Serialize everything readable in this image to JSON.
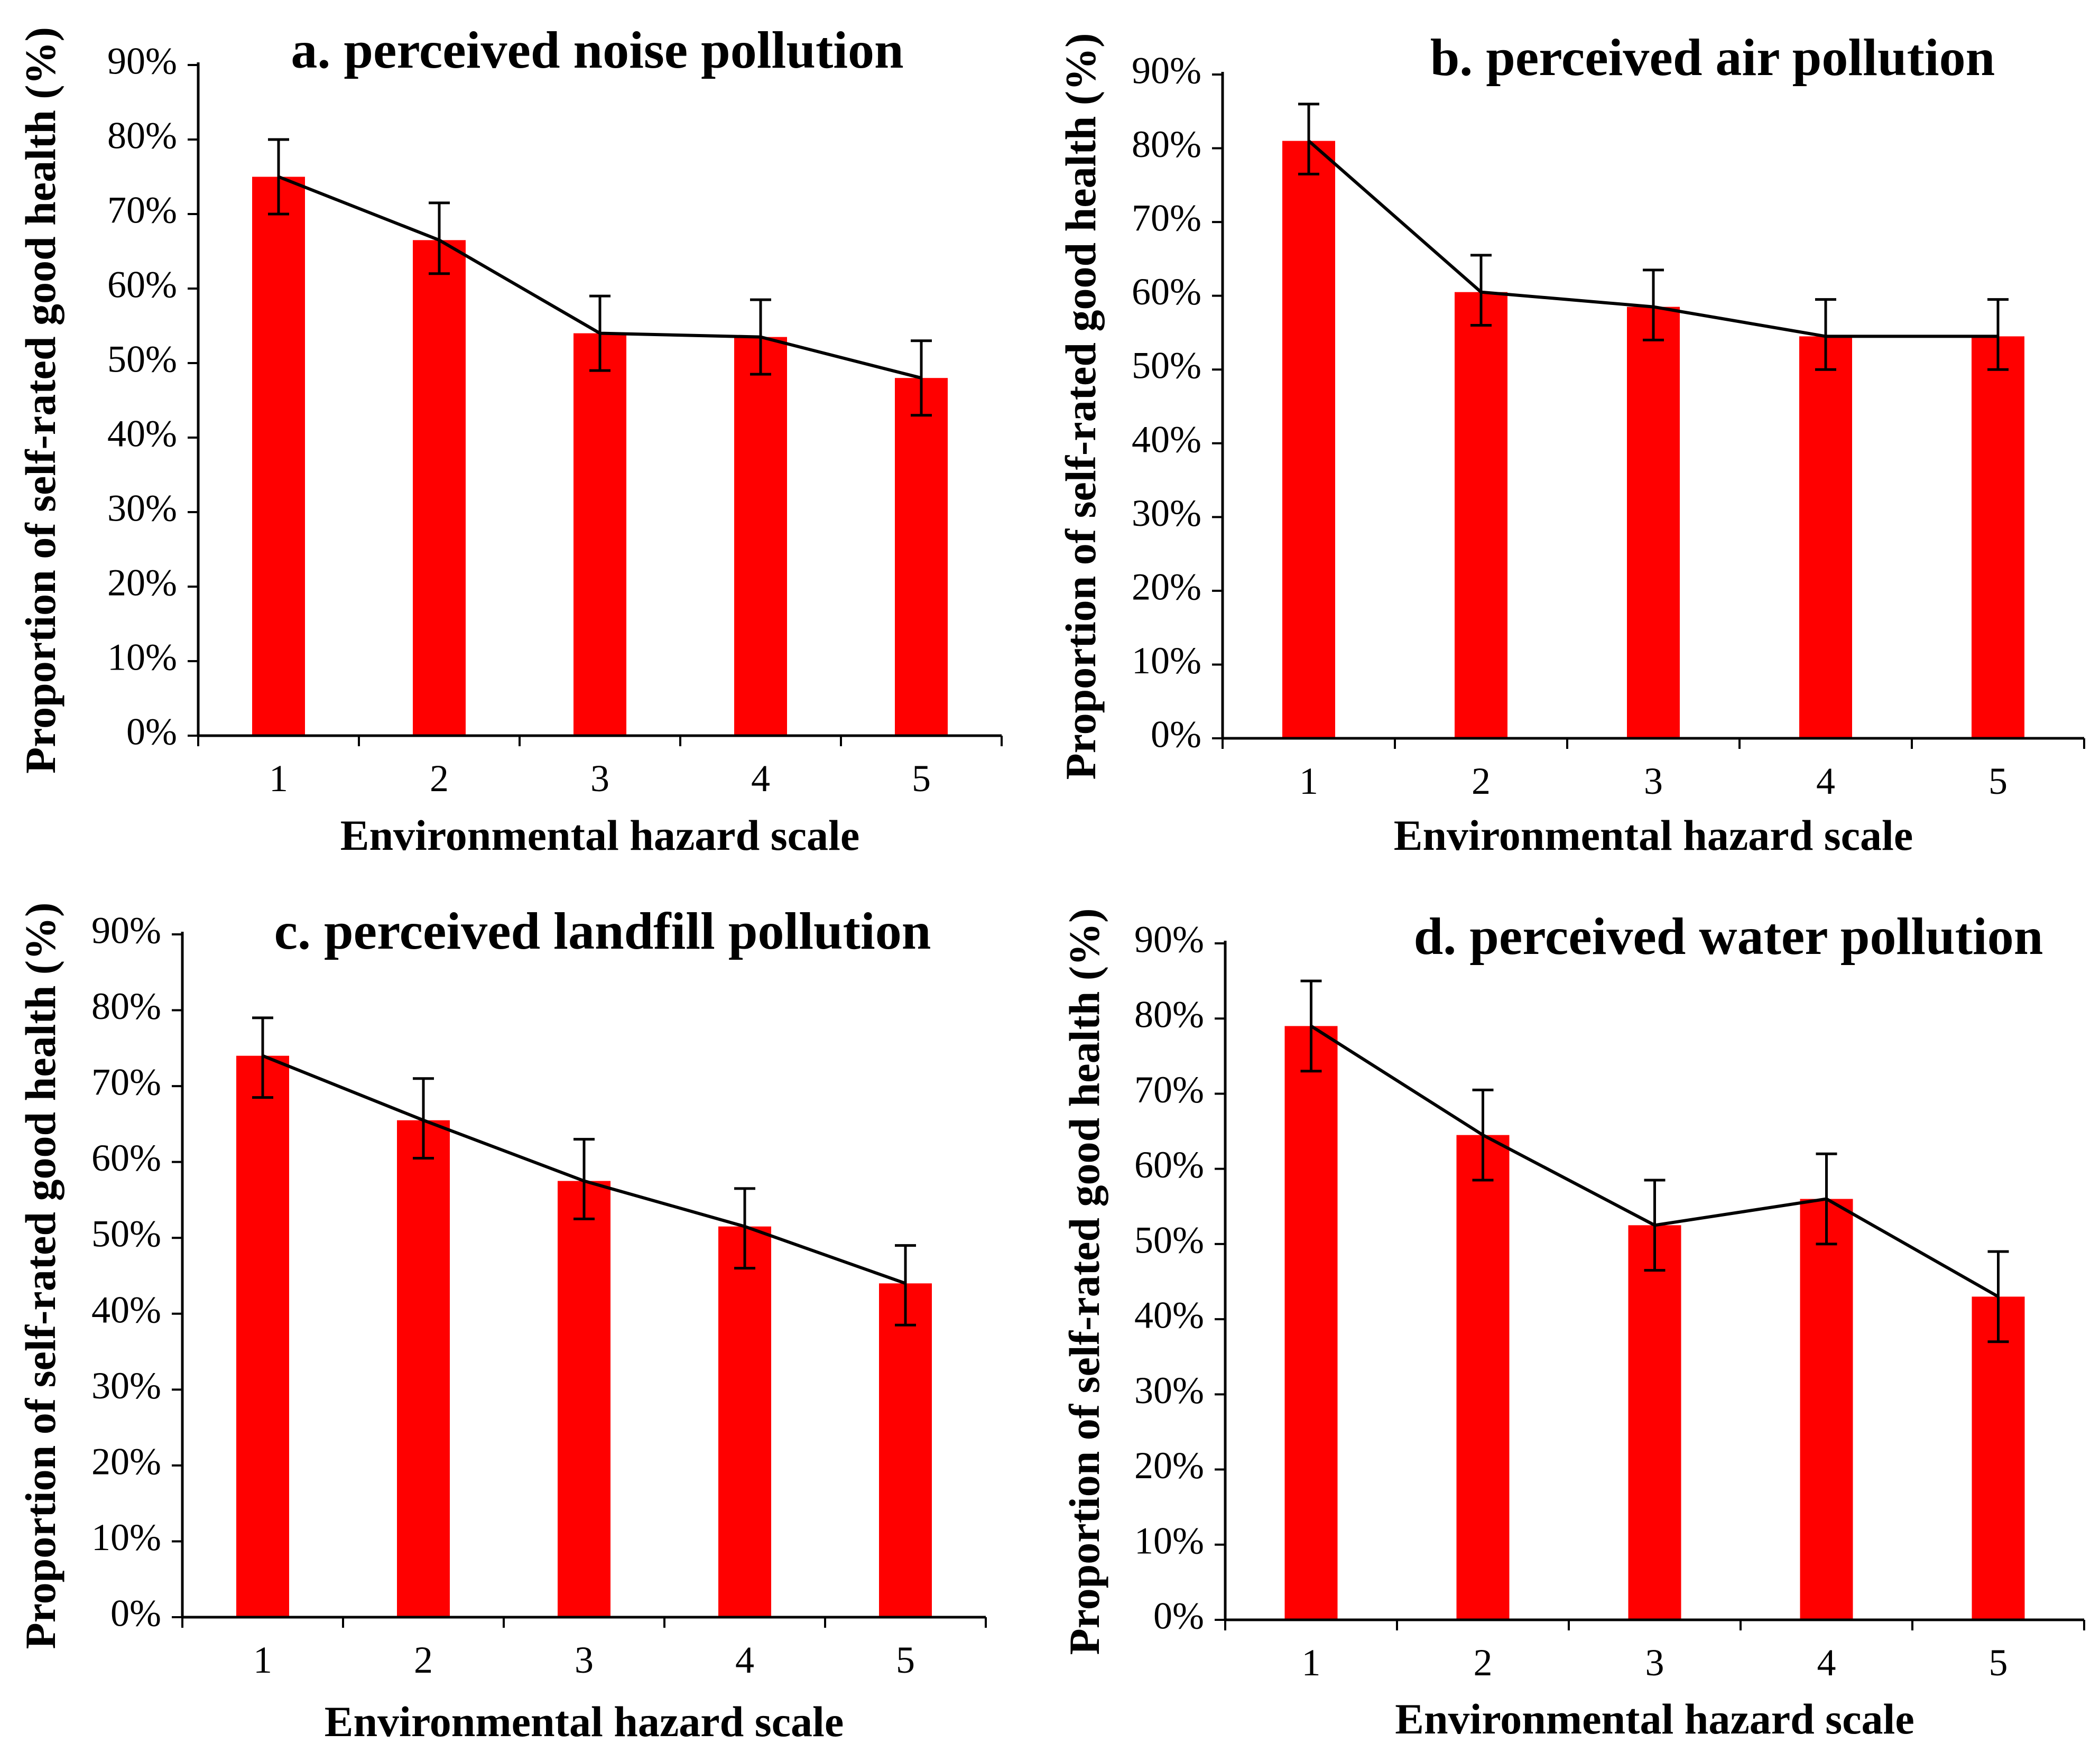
{
  "chart_data": [
    {
      "type": "bar",
      "title": "a. perceived noise pollution",
      "xlabel": "Environmental hazard scale",
      "ylabel": "Proportion of self-rated good health (%)",
      "categories": [
        "1",
        "2",
        "3",
        "4",
        "5"
      ],
      "values": [
        75,
        66.5,
        54,
        53.5,
        48
      ],
      "error_upper": [
        80,
        71.5,
        59,
        58.5,
        53
      ],
      "error_lower": [
        70,
        62,
        49,
        48.5,
        43
      ],
      "ylim": [
        0,
        90
      ],
      "yticks": [
        "0%",
        "10%",
        "20%",
        "30%",
        "40%",
        "50%",
        "60%",
        "70%",
        "80%",
        "90%"
      ],
      "overlay": "line",
      "bar_color": "#ff0000",
      "line_color": "#000000"
    },
    {
      "type": "bar",
      "title": "b. perceived air pollution",
      "xlabel": "Environmental hazard scale",
      "ylabel": "Proportion of self-rated good health (%)",
      "categories": [
        "1",
        "2",
        "3",
        "4",
        "5"
      ],
      "values": [
        81,
        60.5,
        58.5,
        54.5,
        54.5
      ],
      "error_upper": [
        86,
        65.5,
        63.5,
        59.5,
        59.5
      ],
      "error_lower": [
        76.5,
        56,
        54,
        50,
        50
      ],
      "ylim": [
        0,
        90
      ],
      "yticks": [
        "0%",
        "10%",
        "20%",
        "30%",
        "40%",
        "50%",
        "60%",
        "70%",
        "80%",
        "90%"
      ],
      "overlay": "line",
      "bar_color": "#ff0000",
      "line_color": "#000000"
    },
    {
      "type": "bar",
      "title": "c. perceived landfill pollution",
      "xlabel": "Environmental hazard scale",
      "ylabel": "Proportion of self-rated good health (%)",
      "categories": [
        "1",
        "2",
        "3",
        "4",
        "5"
      ],
      "values": [
        74,
        65.5,
        57.5,
        51.5,
        44
      ],
      "error_upper": [
        79,
        71,
        63,
        56.5,
        49
      ],
      "error_lower": [
        68.5,
        60.5,
        52.5,
        46,
        38.5
      ],
      "ylim": [
        0,
        90
      ],
      "yticks": [
        "0%",
        "10%",
        "20%",
        "30%",
        "40%",
        "50%",
        "60%",
        "70%",
        "80%",
        "90%"
      ],
      "overlay": "line",
      "bar_color": "#ff0000",
      "line_color": "#000000"
    },
    {
      "type": "bar",
      "title": "d. perceived water pollution",
      "xlabel": "Environmental hazard scale",
      "ylabel": "Proportion of self-rated good health (%)",
      "categories": [
        "1",
        "2",
        "3",
        "4",
        "5"
      ],
      "values": [
        79,
        64.5,
        52.5,
        56,
        43
      ],
      "error_upper": [
        85,
        70.5,
        58.5,
        62,
        49
      ],
      "error_lower": [
        73,
        58.5,
        46.5,
        50,
        37
      ],
      "ylim": [
        0,
        90
      ],
      "yticks": [
        "0%",
        "10%",
        "20%",
        "30%",
        "40%",
        "50%",
        "60%",
        "70%",
        "80%",
        "90%"
      ],
      "overlay": "line",
      "bar_color": "#ff0000",
      "line_color": "#000000"
    }
  ]
}
